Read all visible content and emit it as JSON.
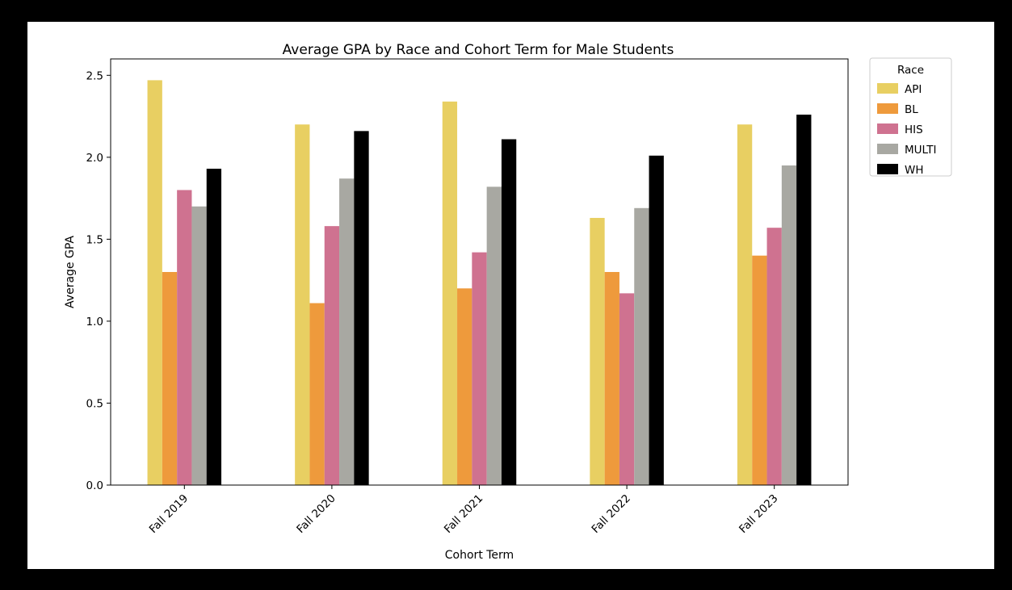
{
  "chart_data": {
    "type": "bar",
    "title": "Average GPA by Race and Cohort Term for Male Students",
    "xlabel": "Cohort Term",
    "ylabel": "Average GPA",
    "categories": [
      "Fall 2019",
      "Fall 2020",
      "Fall 2021",
      "Fall 2022",
      "Fall 2023"
    ],
    "ylim": [
      0,
      2.6
    ],
    "yticks": [
      "0.0",
      "0.5",
      "1.0",
      "1.5",
      "2.0",
      "2.5"
    ],
    "grid": false,
    "legend": {
      "title": "Race",
      "placement": "outside-top-right"
    },
    "series": [
      {
        "name": "API",
        "color": "#e8cf62",
        "values": [
          2.47,
          2.2,
          2.34,
          1.63,
          2.2
        ]
      },
      {
        "name": "BL",
        "color": "#ee9a3c",
        "values": [
          1.3,
          1.11,
          1.2,
          1.3,
          1.4
        ]
      },
      {
        "name": "HIS",
        "color": "#cf7290",
        "values": [
          1.8,
          1.58,
          1.42,
          1.17,
          1.57
        ]
      },
      {
        "name": "MULTI",
        "color": "#a8a8a2",
        "values": [
          1.7,
          1.87,
          1.82,
          1.69,
          1.95
        ]
      },
      {
        "name": "WH",
        "color": "#000000",
        "values": [
          1.93,
          2.16,
          2.11,
          2.01,
          2.26
        ]
      }
    ]
  }
}
